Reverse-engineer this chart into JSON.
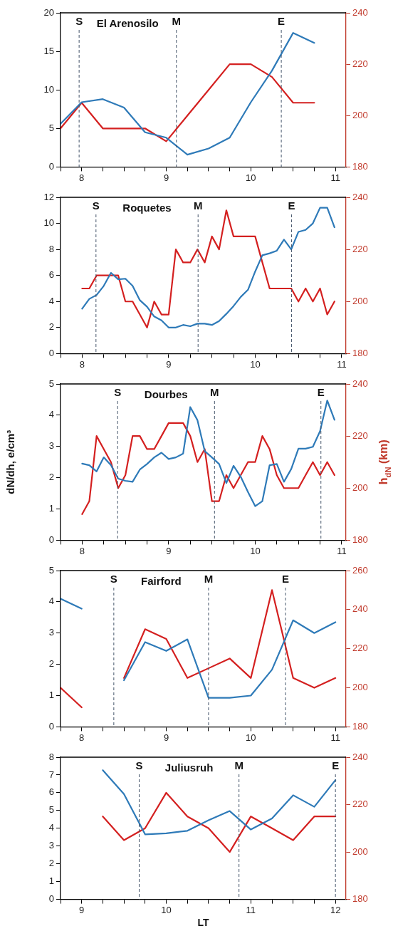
{
  "chart_data": [
    {
      "type": "line",
      "title": "El Arenosilo",
      "x": [
        7.75,
        8,
        8.25,
        8.5,
        8.75,
        9,
        9.25,
        9.5,
        9.75,
        10,
        10.25,
        10.5,
        10.75
      ],
      "series": [
        {
          "color": "#2e7ab8",
          "values": [
            5.6,
            8.4,
            8.8,
            7.7,
            4.5,
            3.8,
            1.6,
            2.4,
            3.8,
            8.4,
            12.5,
            17.4,
            16.1
          ]
        },
        {
          "color": "#d42020",
          "axis": "y2",
          "values": [
            195,
            205,
            195,
            195,
            195,
            190,
            200,
            210,
            220,
            220,
            215,
            205,
            205
          ]
        }
      ],
      "xlim": [
        7.75,
        11.125
      ],
      "xticks": [
        {
          "value": 7.75,
          "label": null
        },
        8,
        {
          "value": 8.25,
          "label": null
        },
        {
          "value": 8.5,
          "label": null
        },
        {
          "value": 8.75,
          "label": null
        },
        9,
        {
          "value": 9.25,
          "label": null
        },
        {
          "value": 9.5,
          "label": null
        },
        {
          "value": 9.75,
          "label": null
        },
        10,
        {
          "value": 10.25,
          "label": null
        },
        {
          "value": 10.5,
          "label": null
        },
        {
          "value": 10.75,
          "label": null
        },
        11
      ],
      "ylim": [
        0,
        20
      ],
      "yticks": [
        0,
        5,
        10,
        15,
        20
      ],
      "y2lim": [
        180,
        240
      ],
      "y2ticks": [
        180,
        200,
        220,
        240
      ],
      "ref_lines": [
        {
          "axis": "x",
          "value": 7.97,
          "label": "S",
          "color": "#44546a",
          "line_style": "dashed"
        },
        {
          "axis": "x",
          "value": 9.12,
          "label": "M",
          "color": "#44546a",
          "line_style": "dashed"
        },
        {
          "axis": "x",
          "value": 10.36,
          "label": "E",
          "color": "#44546a",
          "line_style": "dashed"
        }
      ],
      "grid": false,
      "legend": false
    },
    {
      "type": "line",
      "title": "Roquetes",
      "x": [
        8,
        8.083,
        8.167,
        8.25,
        8.333,
        8.417,
        8.5,
        8.583,
        8.667,
        8.75,
        8.833,
        8.917,
        9,
        9.083,
        9.167,
        9.25,
        9.333,
        9.417,
        9.5,
        9.583,
        9.667,
        9.75,
        9.833,
        9.917,
        10,
        10.083,
        10.167,
        10.25,
        10.333,
        10.417,
        10.5,
        10.583,
        10.667,
        10.75,
        10.833,
        10.917
      ],
      "series": [
        {
          "color": "#2e7ab8",
          "values": [
            3.45,
            4.2,
            4.5,
            5.2,
            6.2,
            5.7,
            5.75,
            5.2,
            4.1,
            3.6,
            2.85,
            2.55,
            2.0,
            2.0,
            2.2,
            2.1,
            2.3,
            2.3,
            2.2,
            2.5,
            3.05,
            3.65,
            4.35,
            4.9,
            6.3,
            7.55,
            7.7,
            7.9,
            8.75,
            8.0,
            9.35,
            9.5,
            10.0,
            11.2,
            11.2,
            9.7
          ]
        },
        {
          "color": "#d42020",
          "axis": "y2",
          "values": [
            205,
            205,
            210,
            210,
            210,
            210,
            200,
            200,
            195,
            190,
            200,
            195,
            195,
            220,
            215,
            215,
            220,
            215,
            225,
            220,
            235,
            225,
            225,
            225,
            225,
            215,
            205,
            205,
            205,
            205,
            200,
            205,
            200,
            205,
            195,
            200
          ]
        }
      ],
      "xlim": [
        7.75,
        11.05
      ],
      "xticks": [
        {
          "value": 7.75,
          "label": null
        },
        8,
        {
          "value": 8.25,
          "label": null
        },
        {
          "value": 8.5,
          "label": null
        },
        {
          "value": 8.75,
          "label": null
        },
        9,
        {
          "value": 9.25,
          "label": null
        },
        {
          "value": 9.5,
          "label": null
        },
        {
          "value": 9.75,
          "label": null
        },
        10,
        {
          "value": 10.25,
          "label": null
        },
        {
          "value": 10.5,
          "label": null
        },
        {
          "value": 10.75,
          "label": null
        },
        11
      ],
      "ylim": [
        0,
        12
      ],
      "yticks": [
        0,
        2,
        4,
        6,
        8,
        10,
        12
      ],
      "y2lim": [
        180,
        240
      ],
      "y2ticks": [
        180,
        200,
        220,
        240
      ],
      "ref_lines": [
        {
          "axis": "x",
          "value": 8.16,
          "label": "S",
          "color": "#44546a",
          "line_style": "dashed"
        },
        {
          "axis": "x",
          "value": 9.34,
          "label": "M",
          "color": "#44546a",
          "line_style": "dashed"
        },
        {
          "axis": "x",
          "value": 10.42,
          "label": "E",
          "color": "#44546a",
          "line_style": "dashed"
        }
      ],
      "grid": false,
      "legend": false
    },
    {
      "type": "line",
      "title": "Dourbes",
      "ylabel": "dN/dh, e/cm³",
      "y2label": "h$_{dN}$ (km)",
      "x": [
        8,
        8.083,
        8.167,
        8.25,
        8.333,
        8.417,
        8.5,
        8.583,
        8.667,
        8.75,
        8.833,
        8.917,
        9,
        9.083,
        9.167,
        9.25,
        9.333,
        9.417,
        9.5,
        9.583,
        9.667,
        9.75,
        9.833,
        9.917,
        10,
        10.083,
        10.167,
        10.25,
        10.333,
        10.417,
        10.5,
        10.583,
        10.667,
        10.75,
        10.833,
        10.917
      ],
      "series": [
        {
          "color": "#2e7ab8",
          "values": [
            2.45,
            2.4,
            2.2,
            2.65,
            2.4,
            1.97,
            1.9,
            1.87,
            2.26,
            2.44,
            2.65,
            2.8,
            2.6,
            2.65,
            2.77,
            4.26,
            3.84,
            2.85,
            2.65,
            2.44,
            1.83,
            2.38,
            2.03,
            1.54,
            1.09,
            1.25,
            2.4,
            2.44,
            1.87,
            2.28,
            2.93,
            2.93,
            2.99,
            3.49,
            4.47,
            3.85
          ]
        },
        {
          "color": "#d42020",
          "axis": "y2",
          "values": [
            190,
            195,
            220,
            215,
            210,
            200,
            205,
            220,
            220,
            215,
            215,
            220,
            225,
            225,
            225,
            220,
            210,
            215,
            195,
            195,
            205,
            200,
            205,
            210,
            210,
            220,
            215,
            205,
            200,
            200,
            200,
            205,
            210,
            205,
            210,
            205
          ]
        }
      ],
      "xlim": [
        7.75,
        11.05
      ],
      "xticks": [
        {
          "value": 7.75,
          "label": null
        },
        8,
        {
          "value": 8.25,
          "label": null
        },
        {
          "value": 8.5,
          "label": null
        },
        {
          "value": 8.75,
          "label": null
        },
        9,
        {
          "value": 9.25,
          "label": null
        },
        {
          "value": 9.5,
          "label": null
        },
        {
          "value": 9.75,
          "label": null
        },
        10,
        {
          "value": 10.25,
          "label": null
        },
        {
          "value": 10.5,
          "label": null
        },
        {
          "value": 10.75,
          "label": null
        },
        11
      ],
      "ylim": [
        0,
        5
      ],
      "yticks": [
        0,
        1,
        2,
        3,
        4,
        5
      ],
      "y2lim": [
        180,
        240
      ],
      "y2ticks": [
        180,
        200,
        220,
        240
      ],
      "ref_lines": [
        {
          "axis": "x",
          "value": 8.41,
          "label": "S",
          "color": "#44546a",
          "line_style": "dashed"
        },
        {
          "axis": "x",
          "value": 9.53,
          "label": "M",
          "color": "#44546a",
          "line_style": "dashed"
        },
        {
          "axis": "x",
          "value": 10.76,
          "label": "E",
          "color": "#44546a",
          "line_style": "dashed"
        }
      ],
      "grid": false,
      "legend": false
    },
    {
      "type": "line",
      "title": "Fairford",
      "x": [
        7.75,
        8,
        8.25,
        8.5,
        8.75,
        9,
        9.25,
        9.5,
        9.75,
        10,
        10.25,
        10.5,
        10.75,
        11
      ],
      "series": [
        {
          "color": "#2e7ab8",
          "values": [
            4.1,
            3.78,
            null,
            1.49,
            2.71,
            2.43,
            2.8,
            0.93,
            0.93,
            1.0,
            1.83,
            3.41,
            3.0,
            3.35
          ]
        },
        {
          "color": "#d42020",
          "axis": "y2",
          "values": [
            200,
            190,
            null,
            205,
            230,
            225,
            205,
            210,
            215,
            205,
            250,
            205,
            200,
            205
          ]
        }
      ],
      "xlim": [
        7.75,
        11.125
      ],
      "xticks": [
        {
          "value": 7.75,
          "label": null
        },
        8,
        {
          "value": 8.25,
          "label": null
        },
        {
          "value": 8.5,
          "label": null
        },
        {
          "value": 8.75,
          "label": null
        },
        9,
        {
          "value": 9.25,
          "label": null
        },
        {
          "value": 9.5,
          "label": null
        },
        {
          "value": 9.75,
          "label": null
        },
        10,
        {
          "value": 10.25,
          "label": null
        },
        {
          "value": 10.5,
          "label": null
        },
        {
          "value": 10.75,
          "label": null
        },
        11
      ],
      "ylim": [
        0,
        5
      ],
      "yticks": [
        0,
        1,
        2,
        3,
        4,
        5
      ],
      "y2lim": [
        180,
        260
      ],
      "y2ticks": [
        180,
        200,
        220,
        240,
        260
      ],
      "ref_lines": [
        {
          "axis": "x",
          "value": 8.38,
          "label": "S",
          "color": "#44546a",
          "line_style": "dashed"
        },
        {
          "axis": "x",
          "value": 9.5,
          "label": "M",
          "color": "#44546a",
          "line_style": "dashed"
        },
        {
          "axis": "x",
          "value": 10.41,
          "label": "E",
          "color": "#44546a",
          "line_style": "dashed"
        }
      ],
      "grid": false,
      "legend": false
    },
    {
      "type": "line",
      "title": "Juliusruh",
      "xlabel": "LT",
      "x": [
        9.25,
        9.5,
        9.75,
        10,
        10.25,
        10.5,
        10.75,
        11,
        11.25,
        11.5,
        11.75,
        12
      ],
      "series": [
        {
          "color": "#2e7ab8",
          "values": [
            7.27,
            5.93,
            3.66,
            3.72,
            3.86,
            4.45,
            4.97,
            3.93,
            4.55,
            5.86,
            5.21,
            6.71
          ]
        },
        {
          "color": "#d42020",
          "axis": "y2",
          "values": [
            215,
            205,
            210,
            225,
            215,
            210,
            200,
            215,
            210,
            205,
            215,
            215
          ]
        }
      ],
      "xlim": [
        8.75,
        12.125
      ],
      "xticks": [
        {
          "value": 8.75,
          "label": null
        },
        9,
        {
          "value": 9.25,
          "label": null
        },
        {
          "value": 9.5,
          "label": null
        },
        {
          "value": 9.75,
          "label": null
        },
        10,
        {
          "value": 10.25,
          "label": null
        },
        {
          "value": 10.5,
          "label": null
        },
        {
          "value": 10.75,
          "label": null
        },
        11,
        {
          "value": 11.25,
          "label": null
        },
        {
          "value": 11.5,
          "label": null
        },
        {
          "value": 11.75,
          "label": null
        },
        12
      ],
      "ylim": [
        0,
        8
      ],
      "yticks": [
        0,
        1,
        2,
        3,
        4,
        5,
        6,
        7,
        8
      ],
      "y2lim": [
        180,
        240
      ],
      "y2ticks": [
        180,
        200,
        220,
        240
      ],
      "ref_lines": [
        {
          "axis": "x",
          "value": 9.68,
          "label": "S",
          "color": "#44546a",
          "line_style": "dashed"
        },
        {
          "axis": "x",
          "value": 10.86,
          "label": "M",
          "color": "#44546a",
          "line_style": "dashed"
        },
        {
          "axis": "x",
          "value": 12.0,
          "label": "E",
          "color": "#44546a",
          "line_style": "dashed"
        }
      ],
      "grid": false,
      "legend": false
    }
  ]
}
